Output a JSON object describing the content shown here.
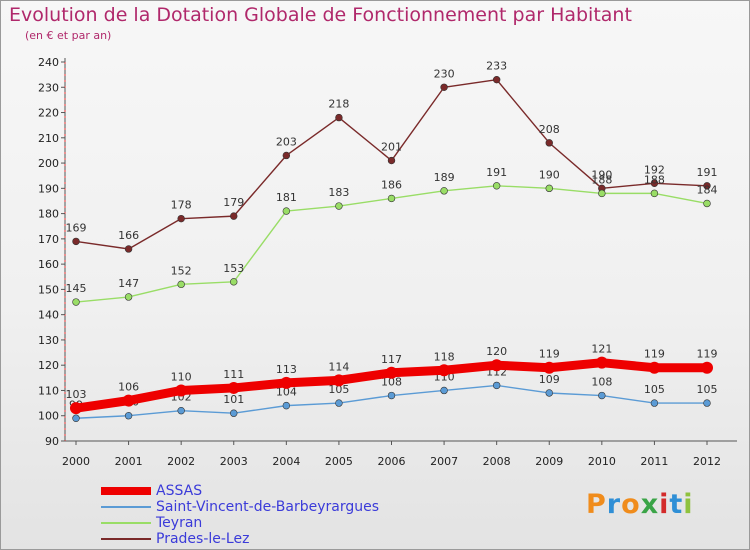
{
  "header": {
    "title": "Evolution de la Dotation Globale de Fonctionnement par Habitant",
    "subtitle": "(en € et par an)"
  },
  "logo": {
    "text": "Proxiti",
    "colors": [
      "#f08c1c",
      "#2f8fd6",
      "#f08c1c",
      "#3aa447",
      "#d32b2b",
      "#2f8fd6",
      "#8fc23e"
    ]
  },
  "chart_data": {
    "type": "line",
    "title": "Evolution de la Dotation Globale de Fonctionnement par Habitant",
    "subtitle": "(en € et par an)",
    "x": [
      "2000",
      "2001",
      "2002",
      "2003",
      "2004",
      "2005",
      "2006",
      "2007",
      "2008",
      "2009",
      "2010",
      "2011",
      "2012"
    ],
    "ylim": [
      90,
      240
    ],
    "yticks": [
      90,
      100,
      110,
      120,
      130,
      140,
      150,
      160,
      170,
      180,
      190,
      200,
      210,
      220,
      230,
      240
    ],
    "grid": false,
    "legend_position": "bottom-left",
    "series": [
      {
        "name": "ASSAS",
        "color": "#ee0000",
        "emphasis": true,
        "values": [
          103,
          106,
          110,
          111,
          113,
          114,
          117,
          118,
          120,
          119,
          121,
          119,
          119
        ]
      },
      {
        "name": "Saint-Vincent-de-Barbeyrargues",
        "color": "#5b9bd5",
        "emphasis": false,
        "values": [
          99,
          100,
          102,
          101,
          104,
          105,
          108,
          110,
          112,
          109,
          108,
          105,
          105
        ]
      },
      {
        "name": "Teyran",
        "color": "#99dd66",
        "emphasis": false,
        "values": [
          145,
          147,
          152,
          153,
          181,
          183,
          186,
          189,
          191,
          190,
          188,
          188,
          184
        ]
      },
      {
        "name": "Prades-le-Lez",
        "color": "#7a2a2a",
        "emphasis": false,
        "values": [
          169,
          166,
          178,
          179,
          203,
          218,
          201,
          230,
          233,
          208,
          190,
          192,
          191
        ]
      }
    ]
  }
}
